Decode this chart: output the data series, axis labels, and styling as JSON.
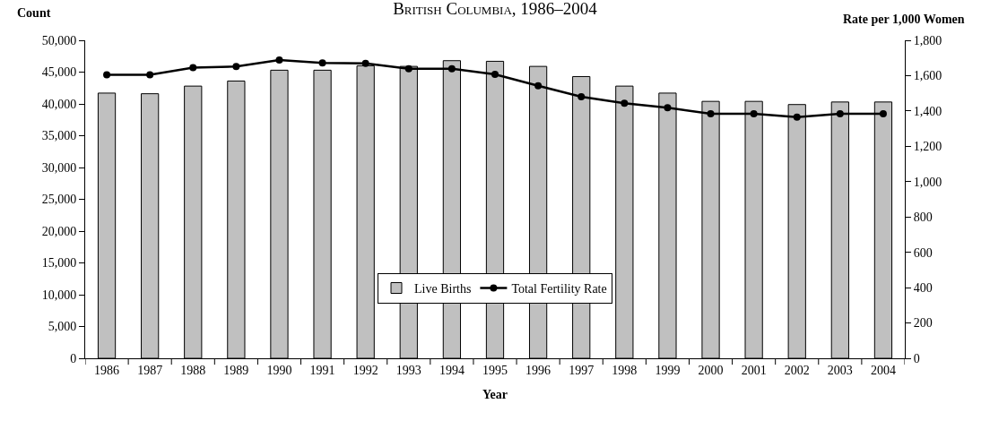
{
  "chart_data": {
    "type": "bar",
    "title": "British Columbia, 1986–2004",
    "xlabel": "Year",
    "ylabel": "Count",
    "y2label": "Rate per 1,000 Women",
    "categories": [
      "1986",
      "1987",
      "1988",
      "1989",
      "1990",
      "1991",
      "1992",
      "1993",
      "1994",
      "1995",
      "1996",
      "1997",
      "1998",
      "1999",
      "2000",
      "2001",
      "2002",
      "2003",
      "2004"
    ],
    "series": [
      {
        "name": "Live Births",
        "color": "#c0c0c0",
        "values": [
          41700,
          41600,
          42800,
          43600,
          45300,
          45300,
          46000,
          45900,
          46800,
          46700,
          45900,
          44300,
          42800,
          41700,
          40400,
          40400,
          39900,
          40300,
          40300
        ]
      },
      {
        "name": "Total Fertility Rate",
        "type": "line",
        "axis": "y2",
        "color": "#000000",
        "marker": "circle",
        "line_style": "solid",
        "values": [
          1605,
          1605,
          1645,
          1652,
          1689,
          1672,
          1669,
          1639,
          1639,
          1607,
          1543,
          1481,
          1444,
          1418,
          1384,
          1384,
          1365,
          1384,
          1384
        ]
      }
    ],
    "ylim": [
      0,
      50000
    ],
    "yticks": [
      {
        "value": 0,
        "label": "0"
      },
      {
        "value": 5000,
        "label": "5,000"
      },
      {
        "value": 10000,
        "label": "10,000"
      },
      {
        "value": 15000,
        "label": "15,000"
      },
      {
        "value": 20000,
        "label": "20,000"
      },
      {
        "value": 25000,
        "label": "25,000"
      },
      {
        "value": 30000,
        "label": "30,000"
      },
      {
        "value": 35000,
        "label": "35,000"
      },
      {
        "value": 40000,
        "label": "40,000"
      },
      {
        "value": 45000,
        "label": "45,000"
      },
      {
        "value": 50000,
        "label": "50,000"
      }
    ],
    "y2lim": [
      0,
      1800
    ],
    "y2ticks": [
      0,
      {
        "value": 200,
        "label": "200"
      },
      {
        "value": 400,
        "label": "400"
      },
      {
        "value": 600,
        "label": "600"
      },
      {
        "value": 800,
        "label": "800"
      },
      {
        "value": 1000,
        "label": "1,000"
      },
      {
        "value": 1200,
        "label": "1,200"
      },
      {
        "value": 1400,
        "label": "1,400"
      },
      {
        "value": 1600,
        "label": "1,600"
      },
      {
        "value": 1800,
        "label": "1,800"
      }
    ],
    "legend": "bottom"
  }
}
